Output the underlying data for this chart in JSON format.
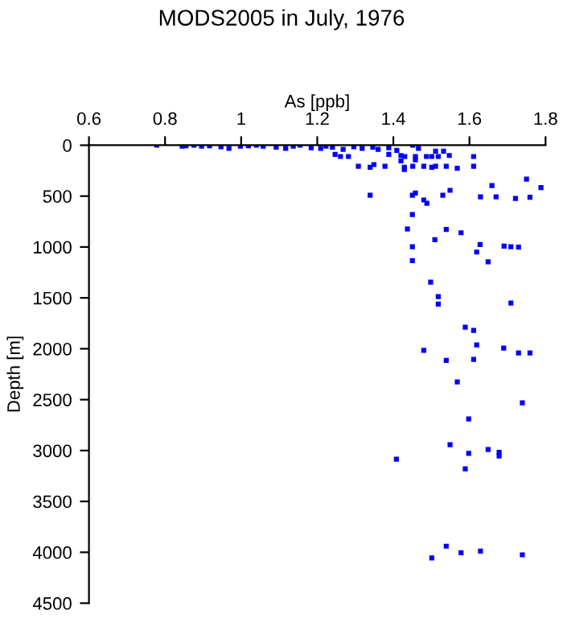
{
  "chart_data": {
    "type": "scatter",
    "title": "MODS2005 in July, 1976",
    "xlabel": "As [ppb]",
    "ylabel": "Depth [m]",
    "x": [
      0.778,
      0.845,
      0.855,
      0.876,
      0.896,
      0.917,
      0.947,
      0.968,
      0.998,
      1.019,
      1.04,
      1.058,
      1.092,
      1.117,
      1.137,
      1.155,
      1.184,
      1.209,
      1.223,
      1.24,
      1.268,
      1.296,
      1.318,
      1.346,
      1.36,
      1.388,
      1.409,
      1.451,
      1.466,
      1.247,
      1.261,
      1.282,
      1.388,
      1.42,
      1.43,
      1.458,
      1.487,
      1.501,
      1.518,
      1.547,
      1.611,
      1.511,
      1.532,
      1.42,
      1.458,
      1.308,
      1.339,
      1.349,
      1.378,
      1.429,
      1.429,
      1.451,
      1.48,
      1.501,
      1.511,
      1.539,
      1.568,
      1.611,
      1.659,
      1.75,
      1.788,
      1.339,
      1.45,
      1.458,
      1.53,
      1.549,
      1.629,
      1.67,
      1.721,
      1.759,
      1.48,
      1.488,
      1.45,
      1.437,
      1.539,
      1.578,
      1.509,
      1.45,
      1.628,
      1.619,
      1.691,
      1.709,
      1.729,
      1.45,
      1.649,
      1.498,
      1.518,
      1.518,
      1.709,
      1.589,
      1.611,
      1.619,
      1.69,
      1.729,
      1.759,
      1.48,
      1.539,
      1.611,
      1.568,
      1.739,
      1.598,
      1.549,
      1.598,
      1.649,
      1.678,
      1.678,
      1.408,
      1.589,
      1.501,
      1.539,
      1.578,
      1.629,
      1.739
    ],
    "values": [
      0,
      10,
      5,
      0,
      10,
      5,
      15,
      30,
      10,
      5,
      0,
      10,
      20,
      30,
      10,
      0,
      25,
      30,
      10,
      20,
      40,
      15,
      30,
      20,
      40,
      25,
      50,
      0,
      30,
      90,
      111,
      111,
      90,
      101,
      111,
      111,
      111,
      111,
      111,
      101,
      111,
      58,
      58,
      153,
      143,
      206,
      217,
      190,
      206,
      217,
      238,
      206,
      206,
      217,
      206,
      206,
      227,
      206,
      396,
      333,
      417,
      491,
      491,
      470,
      491,
      443,
      507,
      507,
      523,
      512,
      538,
      570,
      681,
      823,
      828,
      860,
      929,
      997,
      976,
      1050,
      992,
      997,
      1002,
      1134,
      1145,
      1345,
      1487,
      1561,
      1551,
      1788,
      1820,
      1962,
      1994,
      2041,
      2041,
      2015,
      2115,
      2104,
      2326,
      2531,
      2690,
      2943,
      3027,
      2990,
      3017,
      3053,
      3085,
      3180,
      4056,
      3940,
      4004,
      3988,
      4025
    ],
    "color": "#0000ff",
    "marker": "square",
    "xlim": [
      0.6,
      1.8
    ],
    "xticks": [
      0.6,
      0.8,
      1,
      1.2,
      1.4,
      1.6,
      1.8
    ],
    "ylim": [
      4500,
      0
    ],
    "yticks": [
      0,
      500,
      1000,
      1500,
      2000,
      2500,
      3000,
      3500,
      4000,
      4500
    ],
    "grid": false,
    "legend": false
  }
}
